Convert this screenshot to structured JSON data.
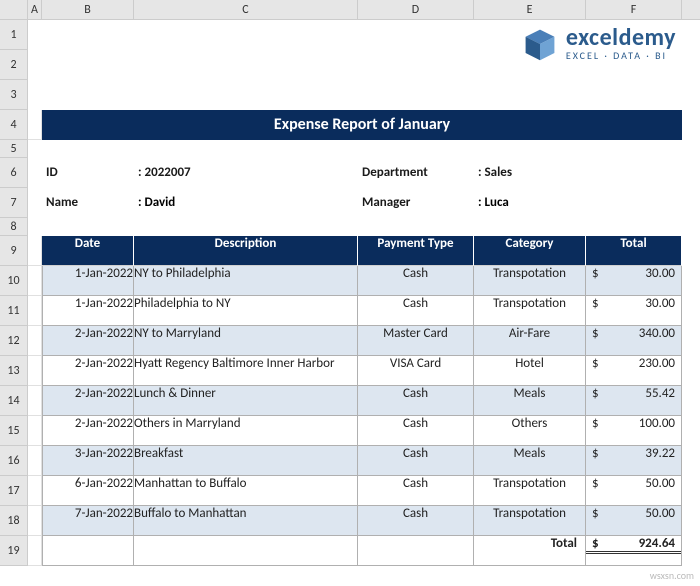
{
  "columns": [
    "A",
    "B",
    "C",
    "D",
    "E",
    "F"
  ],
  "col_widths": {
    "A": 14,
    "B": 92,
    "C": 224,
    "D": 116,
    "E": 112,
    "F": 96
  },
  "logo": {
    "main": "exceldemy",
    "sub": "EXCEL · DATA · BI",
    "color": "#2b5b8c"
  },
  "title": "Expense Report of January",
  "title_bg": "#0a2c5c",
  "title_color": "#ffffff",
  "info": {
    "id_label": "ID",
    "id_value": ": 2022007",
    "name_label": "Name",
    "name_value": ": David",
    "dept_label": "Department",
    "dept_value": ": Sales",
    "mgr_label": "Manager",
    "mgr_value": ": Luca"
  },
  "table": {
    "header_bg": "#0a2c5c",
    "header_color": "#ffffff",
    "alt_bg": "#dde6f0",
    "border_color": "#b0b0b0",
    "columns": [
      "Date",
      "Description",
      "Payment Type",
      "Category",
      "Total"
    ],
    "rows": [
      {
        "date": "1-Jan-2022",
        "desc": "NY to Philadelphia",
        "pay": "Cash",
        "cat": "Transpotation",
        "amt": "30.00",
        "alt": true
      },
      {
        "date": "1-Jan-2022",
        "desc": "Philadelphia to NY",
        "pay": "Cash",
        "cat": "Transpotation",
        "amt": "30.00",
        "alt": false
      },
      {
        "date": "2-Jan-2022",
        "desc": "NY to Marryland",
        "pay": "Master Card",
        "cat": "Air-Fare",
        "amt": "340.00",
        "alt": true
      },
      {
        "date": "2-Jan-2022",
        "desc": "Hyatt Regency Baltimore Inner Harbor",
        "pay": "VISA Card",
        "cat": "Hotel",
        "amt": "230.00",
        "alt": false
      },
      {
        "date": "2-Jan-2022",
        "desc": "Lunch & Dinner",
        "pay": "Cash",
        "cat": "Meals",
        "amt": "55.42",
        "alt": true
      },
      {
        "date": "2-Jan-2022",
        "desc": "Others in Marryland",
        "pay": "Cash",
        "cat": "Others",
        "amt": "100.00",
        "alt": false
      },
      {
        "date": "3-Jan-2022",
        "desc": "Breakfast",
        "pay": "Cash",
        "cat": "Meals",
        "amt": "39.22",
        "alt": true
      },
      {
        "date": "6-Jan-2022",
        "desc": "Manhattan to Buffalo",
        "pay": "Cash",
        "cat": "Transpotation",
        "amt": "50.00",
        "alt": false
      },
      {
        "date": "7-Jan-2022",
        "desc": "Buffalo to Manhattan",
        "pay": "Cash",
        "cat": "Transpotation",
        "amt": "50.00",
        "alt": true
      }
    ],
    "total_label": "Total",
    "total_value": "924.64"
  },
  "watermark": "wsxsn.com"
}
